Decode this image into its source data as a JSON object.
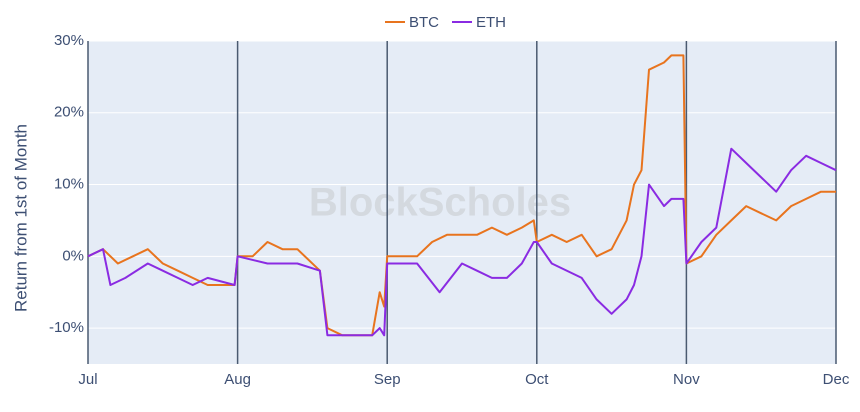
{
  "chart_data": {
    "type": "line",
    "y_label": "Return from 1st of Month",
    "watermark": "BlockScholes",
    "xlim": [
      0,
      5
    ],
    "xticks": [
      {
        "value": 0,
        "label": "Jul"
      },
      {
        "value": 1,
        "label": "Aug"
      },
      {
        "value": 2,
        "label": "Sep"
      },
      {
        "value": 3,
        "label": "Oct"
      },
      {
        "value": 4,
        "label": "Nov"
      },
      {
        "value": 5,
        "label": "Dec"
      }
    ],
    "ylim": [
      -15,
      30
    ],
    "yticks": [
      {
        "value": -10,
        "label": "-10%"
      },
      {
        "value": 0,
        "label": "0%"
      },
      {
        "value": 10,
        "label": "10%"
      },
      {
        "value": 20,
        "label": "20%"
      },
      {
        "value": 30,
        "label": "30%"
      }
    ],
    "grid": true,
    "legend": "top",
    "series": [
      {
        "name": "BTC",
        "color": "#e8741e",
        "x": [
          0,
          0.1,
          0.2,
          0.3,
          0.4,
          0.5,
          0.6,
          0.7,
          0.8,
          0.9,
          0.98,
          1.0,
          1.1,
          1.2,
          1.3,
          1.4,
          1.55,
          1.6,
          1.7,
          1.8,
          1.9,
          1.95,
          1.98,
          2.0,
          2.1,
          2.2,
          2.3,
          2.4,
          2.5,
          2.6,
          2.7,
          2.8,
          2.9,
          2.98,
          3.0,
          3.1,
          3.2,
          3.3,
          3.4,
          3.5,
          3.6,
          3.65,
          3.7,
          3.75,
          3.85,
          3.9,
          3.98,
          4.0,
          4.1,
          4.2,
          4.3,
          4.4,
          4.5,
          4.6,
          4.7,
          4.8,
          4.9,
          5.0
        ],
        "values": [
          0,
          1,
          -1,
          0,
          1,
          -1,
          -2,
          -3,
          -4,
          -4,
          -4,
          0,
          0,
          2,
          1,
          1,
          -2,
          -10,
          -11,
          -11,
          -11,
          -5,
          -7,
          0,
          0,
          0,
          2,
          3,
          3,
          3,
          4,
          3,
          4,
          5,
          2,
          3,
          2,
          3,
          0,
          1,
          5,
          10,
          12,
          26,
          27,
          28,
          28,
          -1,
          0,
          3,
          5,
          7,
          6,
          5,
          7,
          8,
          9,
          9
        ]
      },
      {
        "name": "ETH",
        "color": "#8a2be2",
        "x": [
          0,
          0.1,
          0.15,
          0.25,
          0.4,
          0.5,
          0.6,
          0.7,
          0.8,
          0.98,
          1.0,
          1.2,
          1.4,
          1.55,
          1.6,
          1.7,
          1.8,
          1.9,
          1.95,
          1.98,
          2.0,
          2.2,
          2.35,
          2.5,
          2.6,
          2.7,
          2.8,
          2.9,
          2.98,
          3.0,
          3.1,
          3.3,
          3.4,
          3.5,
          3.6,
          3.65,
          3.7,
          3.75,
          3.85,
          3.9,
          3.98,
          4.0,
          4.1,
          4.2,
          4.3,
          4.4,
          4.5,
          4.6,
          4.7,
          4.8,
          4.9,
          5.0
        ],
        "values": [
          0,
          1,
          -4,
          -3,
          -1,
          -2,
          -3,
          -4,
          -3,
          -4,
          0,
          -1,
          -1,
          -2,
          -11,
          -11,
          -11,
          -11,
          -10,
          -11,
          -1,
          -1,
          -5,
          -1,
          -2,
          -3,
          -3,
          -1,
          2,
          2,
          -1,
          -3,
          -6,
          -8,
          -6,
          -4,
          0,
          10,
          7,
          8,
          8,
          -1,
          2,
          4,
          15,
          13,
          11,
          9,
          12,
          14,
          13,
          12
        ]
      }
    ]
  }
}
